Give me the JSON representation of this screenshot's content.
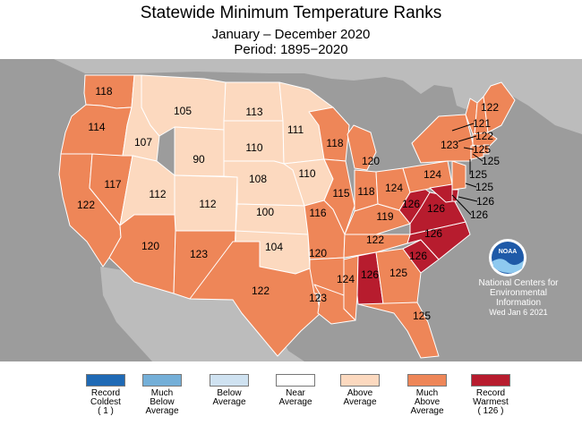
{
  "title": "Statewide Minimum Temperature Ranks",
  "subtitle": "January – December 2020",
  "period": "Period: 1895−2020",
  "colors": {
    "ocean": "#9c9c9c",
    "land": "#bcbcbc",
    "border": "#ffffff",
    "near_above": "#fcd9bf",
    "much_above": "#ee8658",
    "record_warm": "#b71c2e"
  },
  "states": [
    {
      "name": "WA",
      "rank": "118",
      "class": "much_above"
    },
    {
      "name": "OR",
      "rank": "114",
      "class": "much_above"
    },
    {
      "name": "CA",
      "rank": "122",
      "class": "much_above"
    },
    {
      "name": "NV",
      "rank": "117",
      "class": "much_above"
    },
    {
      "name": "ID",
      "rank": "107",
      "class": "above"
    },
    {
      "name": "MT",
      "rank": "105",
      "class": "above"
    },
    {
      "name": "WY",
      "rank": "90",
      "class": "above"
    },
    {
      "name": "UT",
      "rank": "112",
      "class": "above"
    },
    {
      "name": "CO",
      "rank": "112",
      "class": "above"
    },
    {
      "name": "AZ",
      "rank": "120",
      "class": "much_above"
    },
    {
      "name": "NM",
      "rank": "123",
      "class": "much_above"
    },
    {
      "name": "ND",
      "rank": "113",
      "class": "above"
    },
    {
      "name": "SD",
      "rank": "110",
      "class": "above"
    },
    {
      "name": "NE",
      "rank": "108",
      "class": "above"
    },
    {
      "name": "KS",
      "rank": "100",
      "class": "above"
    },
    {
      "name": "OK",
      "rank": "104",
      "class": "above"
    },
    {
      "name": "TX",
      "rank": "122",
      "class": "much_above"
    },
    {
      "name": "MN",
      "rank": "111",
      "class": "above"
    },
    {
      "name": "IA",
      "rank": "110",
      "class": "above"
    },
    {
      "name": "MO",
      "rank": "116",
      "class": "much_above"
    },
    {
      "name": "AR",
      "rank": "120",
      "class": "much_above"
    },
    {
      "name": "LA",
      "rank": "123",
      "class": "much_above"
    },
    {
      "name": "WI",
      "rank": "118",
      "class": "much_above"
    },
    {
      "name": "IL",
      "rank": "115",
      "class": "much_above"
    },
    {
      "name": "MI",
      "rank": "120",
      "class": "much_above"
    },
    {
      "name": "IN",
      "rank": "118",
      "class": "much_above"
    },
    {
      "name": "OH",
      "rank": "124",
      "class": "much_above"
    },
    {
      "name": "KY",
      "rank": "119",
      "class": "much_above"
    },
    {
      "name": "TN",
      "rank": "122",
      "class": "much_above"
    },
    {
      "name": "MS",
      "rank": "124",
      "class": "much_above"
    },
    {
      "name": "AL",
      "rank": "126",
      "class": "record_warm"
    },
    {
      "name": "GA",
      "rank": "125",
      "class": "much_above"
    },
    {
      "name": "FL",
      "rank": "125",
      "class": "much_above"
    },
    {
      "name": "SC",
      "rank": "126",
      "class": "record_warm"
    },
    {
      "name": "NC",
      "rank": "126",
      "class": "record_warm"
    },
    {
      "name": "VA",
      "rank": "126",
      "class": "record_warm"
    },
    {
      "name": "WV",
      "rank": "126",
      "class": "record_warm"
    },
    {
      "name": "PA",
      "rank": "124",
      "class": "much_above"
    },
    {
      "name": "NY",
      "rank": "123",
      "class": "much_above"
    },
    {
      "name": "VT",
      "rank": "121",
      "class": "much_above"
    },
    {
      "name": "NH",
      "rank": "122",
      "class": "much_above"
    },
    {
      "name": "MA",
      "rank": "125",
      "class": "much_above"
    },
    {
      "name": "RI",
      "rank": "125",
      "class": "much_above"
    },
    {
      "name": "CT",
      "rank": "125",
      "class": "much_above"
    },
    {
      "name": "NJ",
      "rank": "125",
      "class": "much_above"
    },
    {
      "name": "DE",
      "rank": "126",
      "class": "record_warm"
    },
    {
      "name": "MD",
      "rank": "126",
      "class": "record_warm"
    },
    {
      "name": "ME",
      "rank": "122",
      "class": "much_above"
    }
  ],
  "noaa": {
    "logo_text": "NOAA",
    "lines": [
      "National Centers for",
      "Environmental",
      "Information"
    ],
    "date": "Wed Jan  6 2021"
  },
  "legend": [
    {
      "lines": [
        "Record",
        "Coldest",
        "( 1 )"
      ],
      "color": "#1f6ab5"
    },
    {
      "lines": [
        "Much",
        "Below",
        "Average"
      ],
      "color": "#74afd8"
    },
    {
      "lines": [
        "Below",
        "Average",
        ""
      ],
      "color": "#cfe2f1"
    },
    {
      "lines": [
        "Near",
        "Average",
        ""
      ],
      "color": "#ffffff"
    },
    {
      "lines": [
        "Above",
        "Average",
        ""
      ],
      "color": "#fcd9bf"
    },
    {
      "lines": [
        "Much",
        "Above",
        "Average"
      ],
      "color": "#ee8658"
    },
    {
      "lines": [
        "Record",
        "Warmest",
        "( 126 )"
      ],
      "color": "#b71c2e"
    }
  ]
}
